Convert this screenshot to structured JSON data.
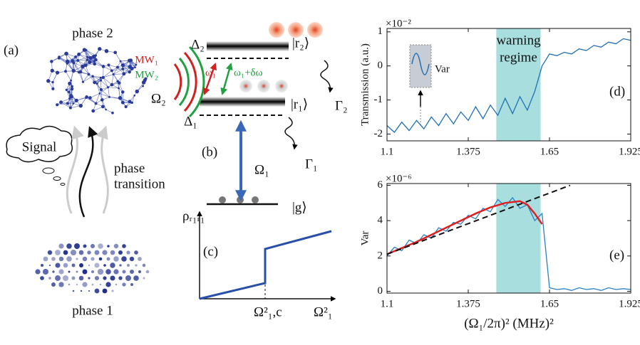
{
  "diagram": {
    "panel_a": {
      "label": "(a)",
      "top_phase": "phase 2",
      "signal": "Signal",
      "transition_line1": "phase",
      "transition_line2": "transition",
      "bottom_phase": "phase 1"
    },
    "panel_b": {
      "label": "(b)",
      "mw1": "MW₁",
      "mw2": "MW₂",
      "omega2": "Ω₂",
      "delta2": "Δ₂",
      "r2": "|r₂⟩",
      "omega_1": "ω₁",
      "omega_1_shift": "ω₁+δω",
      "r1": "|r₁⟩",
      "delta1": "Δ₁",
      "gamma2": "Γ₂",
      "gamma1": "Γ₁",
      "omega1": "Ω₁",
      "g": "|g⟩"
    },
    "panel_c": {
      "label": "(c)",
      "y_label": "ρᵣ₁ᵣ₁",
      "critical": "Ω²₁,c",
      "x_label": "Ω²₁"
    }
  },
  "chart_data": [
    {
      "type": "line",
      "panel_label": "(d)",
      "y_label": "Transmission (a.u.)",
      "multiplier": "×10⁻²",
      "highlight": [
        1.47,
        1.62
      ],
      "highlight_label_line1": "warning",
      "highlight_label_line2": "regime",
      "highlight_color": "#a8dede",
      "inset_label": "Var",
      "xlim": [
        1.1,
        1.925
      ],
      "xticks": [
        1.1,
        1.375,
        1.65,
        1.925
      ],
      "ylim": [
        -2.2,
        1.1
      ],
      "yticks": [
        -2,
        -1,
        0,
        1
      ],
      "series": [
        {
          "name": "Transmission",
          "color": "#1f6fb5",
          "x": [
            1.1,
            1.125,
            1.15,
            1.175,
            1.2,
            1.225,
            1.25,
            1.275,
            1.3,
            1.325,
            1.35,
            1.375,
            1.4,
            1.425,
            1.45,
            1.475,
            1.5,
            1.525,
            1.55,
            1.575,
            1.6,
            1.625,
            1.65,
            1.675,
            1.7,
            1.725,
            1.75,
            1.775,
            1.8,
            1.825,
            1.85,
            1.875,
            1.9,
            1.925
          ],
          "values": [
            -1.75,
            -1.95,
            -1.65,
            -1.9,
            -1.6,
            -1.85,
            -1.5,
            -1.75,
            -1.4,
            -1.7,
            -1.35,
            -1.6,
            -1.2,
            -1.55,
            -1.15,
            -1.45,
            -0.95,
            -1.4,
            -0.9,
            -1.3,
            -0.75,
            0.0,
            0.35,
            0.3,
            0.4,
            0.35,
            0.5,
            0.45,
            0.6,
            0.55,
            0.7,
            0.65,
            0.8,
            0.75
          ]
        }
      ]
    },
    {
      "type": "line",
      "panel_label": "(e)",
      "y_label": "Var",
      "x_label": "(Ω₁/2π)² (MHz)²",
      "multiplier": "×10⁻⁶",
      "highlight": [
        1.47,
        1.62
      ],
      "highlight_color": "#a8dede",
      "xlim": [
        1.1,
        1.925
      ],
      "xticks": [
        1.1,
        1.375,
        1.65,
        1.925
      ],
      "ylim": [
        -0.1,
        6.1
      ],
      "yticks": [
        0,
        2,
        4,
        6
      ],
      "series": [
        {
          "name": "Var",
          "color": "#2a7fc9",
          "x": [
            1.1,
            1.125,
            1.15,
            1.175,
            1.2,
            1.225,
            1.25,
            1.275,
            1.3,
            1.325,
            1.35,
            1.375,
            1.4,
            1.425,
            1.45,
            1.475,
            1.5,
            1.525,
            1.55,
            1.575,
            1.6,
            1.625,
            1.65,
            1.675,
            1.7,
            1.725,
            1.75,
            1.775,
            1.8,
            1.825,
            1.85,
            1.875,
            1.9,
            1.925
          ],
          "values": [
            2.0,
            2.5,
            2.3,
            2.9,
            2.7,
            3.2,
            3.0,
            3.6,
            3.4,
            3.9,
            3.8,
            4.3,
            4.1,
            4.7,
            4.5,
            5.2,
            4.8,
            5.3,
            4.7,
            4.9,
            4.0,
            4.4,
            0.2,
            0.1,
            0.15,
            0.05,
            0.2,
            0.1,
            0.15,
            0.05,
            0.2,
            0.1,
            0.15,
            0.1
          ]
        },
        {
          "name": "Fit",
          "color": "#e02020",
          "x": [
            1.1,
            1.2,
            1.3,
            1.4,
            1.45,
            1.5,
            1.55,
            1.575,
            1.6,
            1.625
          ],
          "values": [
            2.1,
            2.8,
            3.6,
            4.4,
            4.75,
            5.0,
            5.1,
            4.9,
            4.4,
            3.8
          ]
        },
        {
          "name": "Linear",
          "color": "#111111",
          "dash": true,
          "x": [
            1.1,
            1.72
          ],
          "values": [
            2.1,
            6.0
          ]
        }
      ]
    }
  ]
}
